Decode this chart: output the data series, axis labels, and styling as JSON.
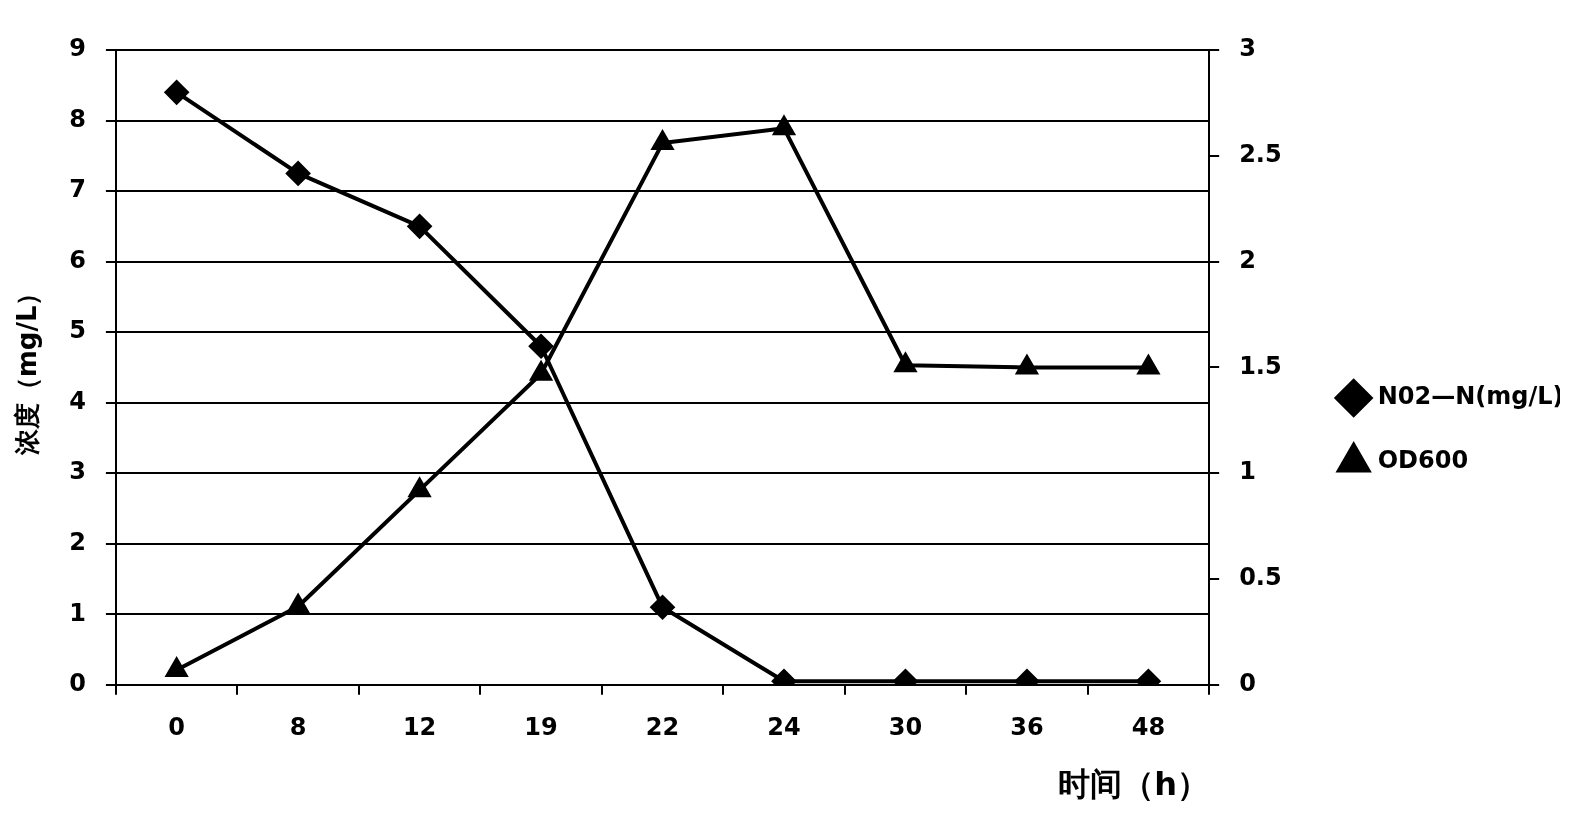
{
  "chart_data": {
    "type": "line",
    "xlabel": "时间（h）",
    "ylabel": "浓度（mg/L）",
    "categories": [
      "0",
      "8",
      "12",
      "19",
      "22",
      "24",
      "30",
      "36",
      "48"
    ],
    "series": [
      {
        "name": "N02—N(mg/L)",
        "color": "#000000",
        "marker": "diamond",
        "values": [
          8.4,
          7.25,
          6.5,
          4.8,
          1.1,
          0.05,
          0.05,
          0.05,
          0.05
        ]
      },
      {
        "name": "OD600",
        "color": "#000000",
        "marker": "triangle",
        "axis": "y2",
        "values": [
          0.07,
          0.37,
          0.92,
          1.47,
          2.56,
          2.63,
          1.51,
          1.5,
          1.5
        ]
      }
    ],
    "ylim": [
      0,
      9
    ],
    "yticks": [
      0,
      1,
      2,
      3,
      4,
      5,
      6,
      7,
      8,
      9
    ],
    "y2lim": [
      0,
      3
    ],
    "y2ticks": [
      0,
      0.5,
      1,
      1.5,
      2,
      2.5,
      3
    ],
    "grid": "y",
    "legend": "right",
    "line_style": "solid"
  }
}
